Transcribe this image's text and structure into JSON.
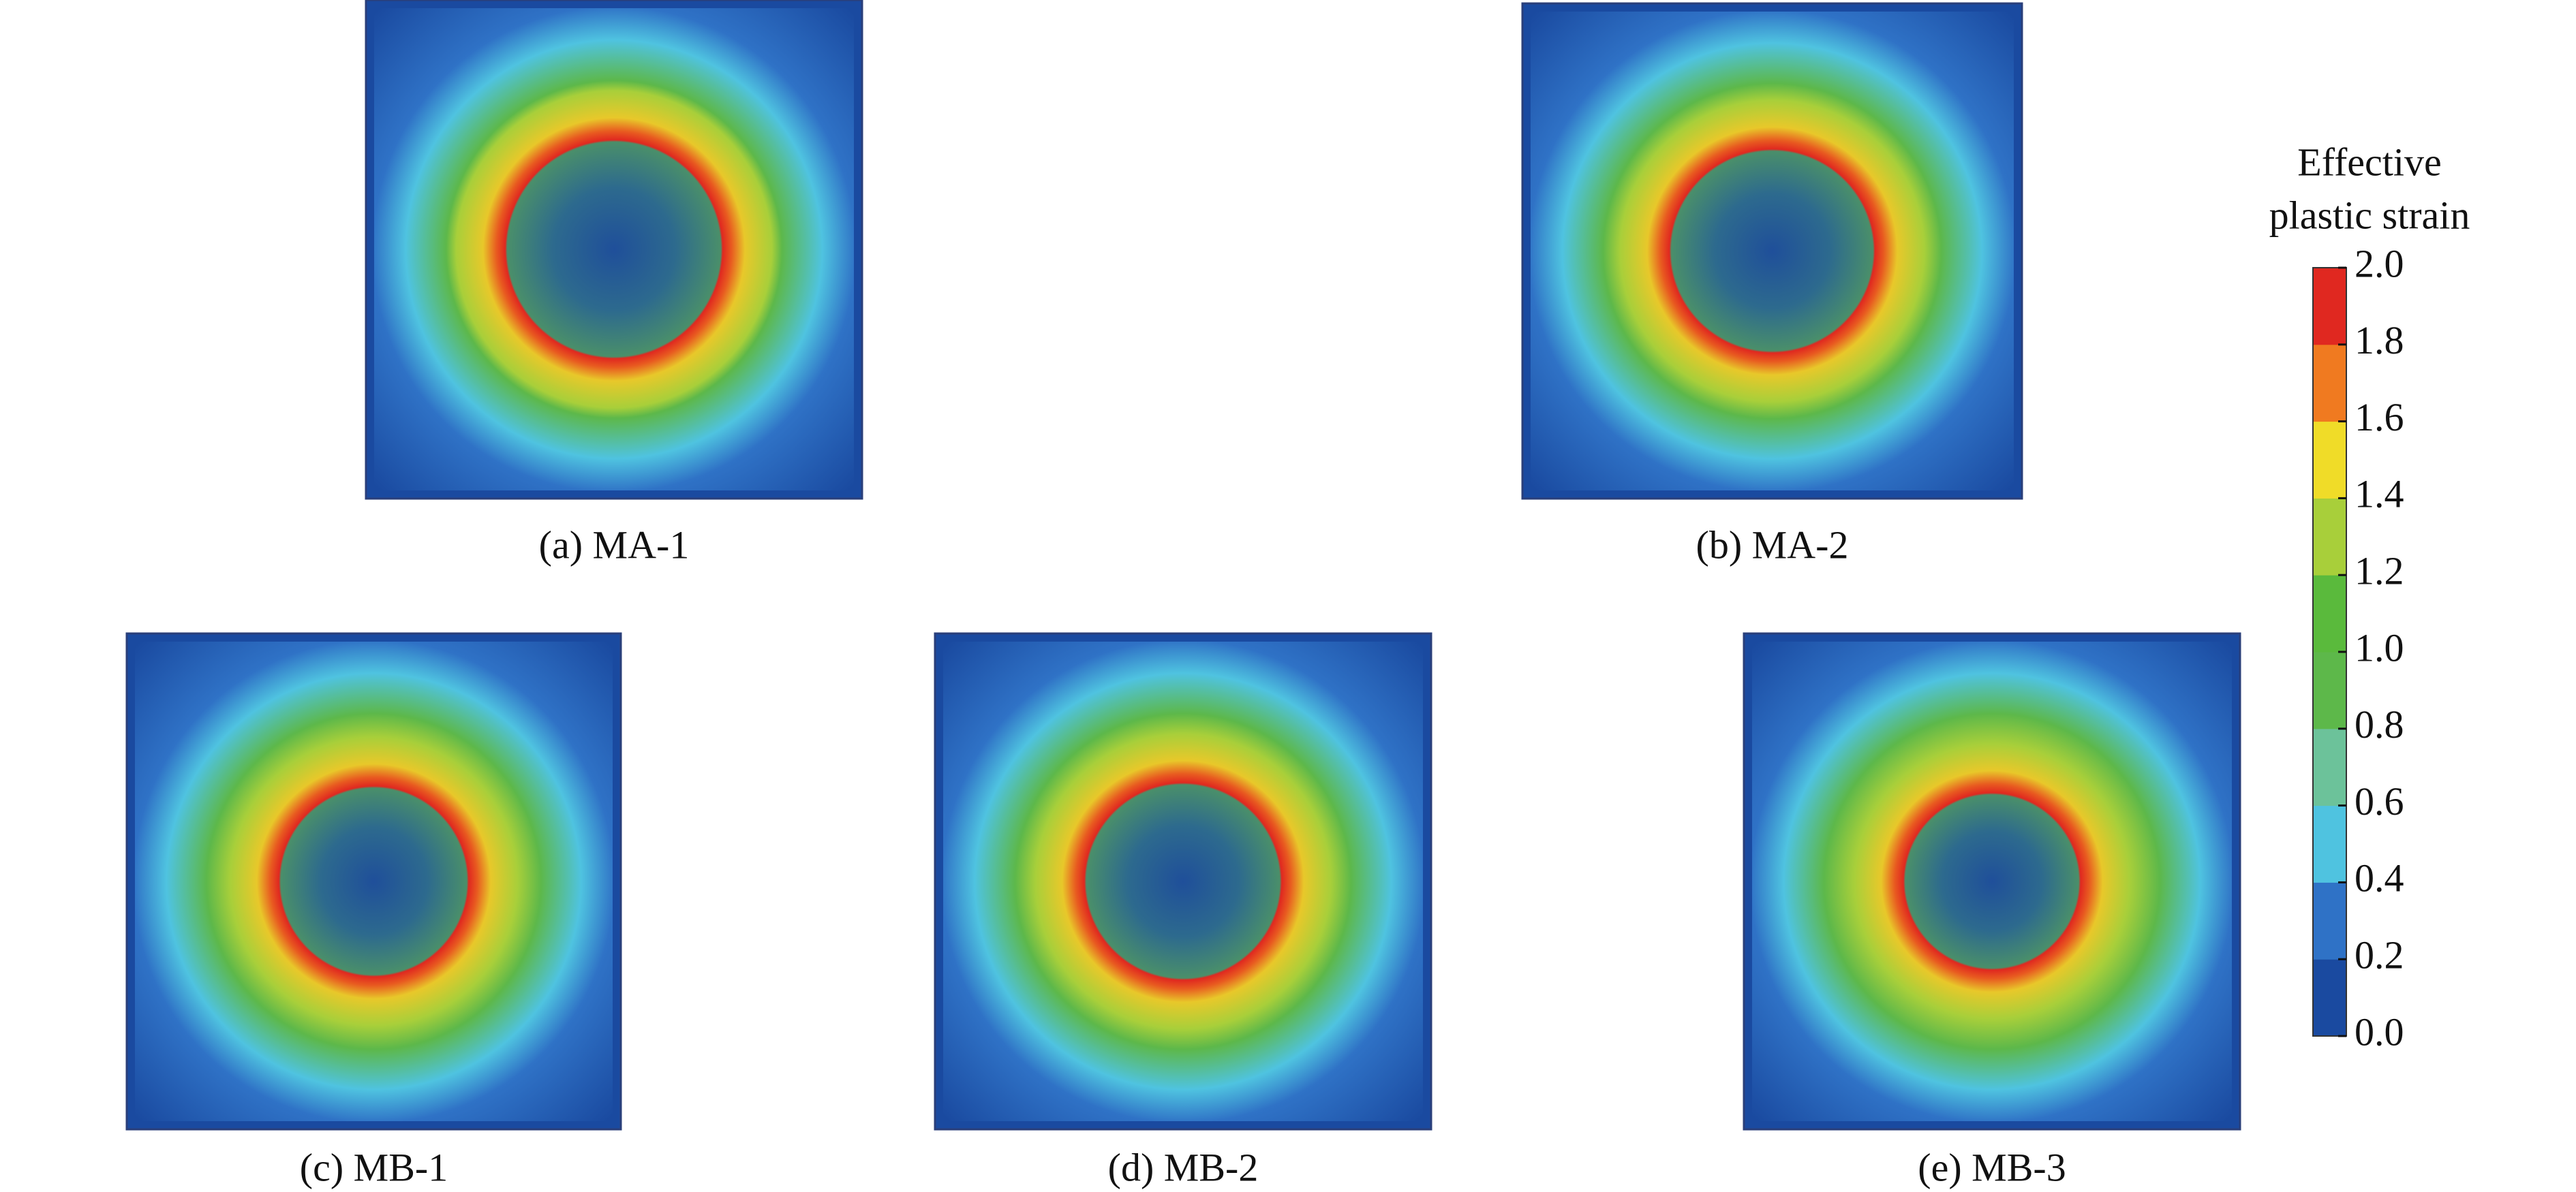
{
  "panels": [
    {
      "label": "(a) MA-1"
    },
    {
      "label": "(b) MA-2"
    },
    {
      "label": "(c) MB-1"
    },
    {
      "label": "(d) MB-2"
    },
    {
      "label": "(e) MB-3"
    }
  ],
  "colorbar": {
    "title": [
      "Effective",
      "plastic strain"
    ],
    "ticks": [
      "0.0",
      "0.2",
      "0.4",
      "0.6",
      "0.8",
      "1.0",
      "1.2",
      "1.4",
      "1.6",
      "1.8",
      "2.0"
    ],
    "colors": [
      "#1a4aa0",
      "#2f72c6",
      "#4fc3e0",
      "#6cc29a",
      "#5db84a",
      "#5aba3c",
      "#a8cf3a",
      "#f0dc28",
      "#f07a20",
      "#e02820"
    ]
  }
}
